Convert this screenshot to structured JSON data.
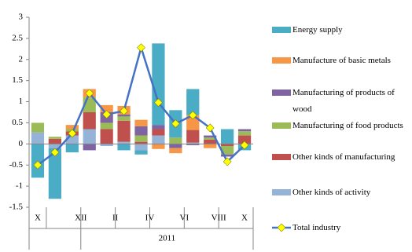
{
  "chart_data": {
    "type": "bar",
    "categories": [
      "X",
      null,
      "XII",
      null,
      "II",
      null,
      "IV",
      null,
      "VI",
      null,
      "VIII",
      null,
      "X"
    ],
    "year_label": "2011",
    "series": [
      {
        "name": "Energy supply",
        "color": "#4bacc6",
        "values": [
          -0.8,
          -1.2,
          -0.2,
          0,
          0,
          -0.15,
          -0.1,
          1.93,
          0.65,
          0.62,
          0,
          0.35,
          -0.15
        ]
      },
      {
        "name": "Manufacture of basic metals",
        "color": "#f79646",
        "values": [
          0,
          0,
          0.1,
          0.2,
          0.17,
          0.2,
          0.15,
          -0.12,
          -0.12,
          0.35,
          -0.1,
          0,
          0
        ]
      },
      {
        "name": "Manufacturing of products of wood",
        "color": "#8064a2",
        "values": [
          0,
          0,
          0,
          -0.15,
          0.25,
          0.05,
          0.22,
          0.1,
          -0.1,
          -0.03,
          0.05,
          -0.05,
          0.05
        ]
      },
      {
        "name": "Manufacturing of food products",
        "color": "#9bbb59",
        "values": [
          0.23,
          0.05,
          0.05,
          0.35,
          0.15,
          0.1,
          0.15,
          0,
          0.15,
          0,
          0.05,
          -0.2,
          0.1
        ]
      },
      {
        "name": "Other kinds of manufacturing",
        "color": "#c0504d",
        "values": [
          0,
          0.12,
          0.1,
          0.4,
          0.35,
          0.5,
          0.05,
          0.15,
          0,
          0.3,
          0.1,
          -0.05,
          0.2
        ]
      },
      {
        "name": "Other kinds of activity",
        "color": "#95b3d7",
        "values": [
          0.27,
          -0.1,
          0.2,
          0.35,
          -0.05,
          0.05,
          -0.15,
          0.2,
          0,
          0.03,
          0,
          0,
          0
        ]
      }
    ],
    "line": {
      "name": "Total industry",
      "color": "#4472c4",
      "marker_color": "#ffff00",
      "values": [
        -0.5,
        -0.2,
        0.25,
        1.2,
        0.7,
        0.78,
        2.28,
        0.98,
        0.48,
        0.68,
        0.38,
        -0.42,
        -0.03
      ]
    },
    "ylim": [
      -1.5,
      3
    ],
    "yticks": [
      -1.5,
      -1,
      -0.5,
      0,
      0.5,
      1,
      1.5,
      2,
      2.5,
      3
    ]
  }
}
